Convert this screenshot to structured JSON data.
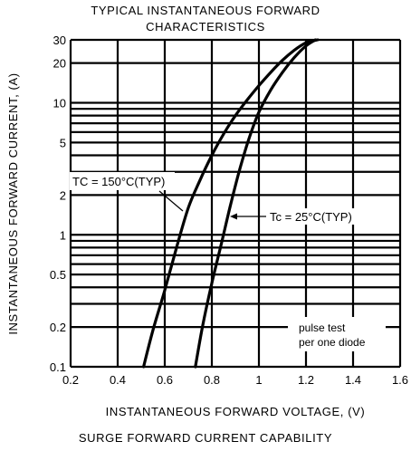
{
  "title_line1": "TYPICAL INSTANTANEOUS FORWARD",
  "title_line2": "CHARACTERISTICS",
  "footer": "SURGE FORWARD CURRENT CAPABILITY",
  "chart_data": {
    "type": "line",
    "title": "TYPICAL INSTANTANEOUS FORWARD CHARACTERISTICS",
    "xlabel": "INSTANTANEOUS FORWARD VOLTAGE, (V)",
    "ylabel": "INSTANTANEOUS FORWARD CURRENT, (A)",
    "x_scale": "linear",
    "y_scale": "log",
    "xlim": [
      0.2,
      1.6
    ],
    "ylim": [
      0.1,
      30
    ],
    "xticks": [
      0.2,
      0.4,
      0.6,
      0.8,
      1.0,
      1.2,
      1.4,
      1.6
    ],
    "xtick_labels": [
      "0.2",
      "0.4",
      "0.6",
      "0.8",
      "1",
      "1.2",
      "1.4",
      "1.6"
    ],
    "yticks": [
      0.1,
      0.2,
      0.5,
      1,
      2,
      5,
      10,
      20,
      30
    ],
    "ytick_labels": [
      "0.1",
      "0.2",
      "0.5",
      "1",
      "2",
      "5",
      "10",
      "20",
      "30"
    ],
    "y_gridlines": [
      0.1,
      0.2,
      0.3,
      0.4,
      0.5,
      0.6,
      0.7,
      0.8,
      0.9,
      1,
      2,
      3,
      4,
      5,
      6,
      7,
      8,
      9,
      10,
      20,
      30
    ],
    "grid": true,
    "series": [
      {
        "name": "TC = 150°C(TYP)",
        "x": [
          0.51,
          0.55,
          0.6,
          0.65,
          0.7,
          0.75,
          0.8,
          0.85,
          0.9,
          0.95,
          1.0,
          1.05,
          1.1,
          1.15,
          1.2,
          1.25
        ],
        "y": [
          0.1,
          0.19,
          0.38,
          0.8,
          1.6,
          2.6,
          4.0,
          5.8,
          8.0,
          10.5,
          13.5,
          17.0,
          21.0,
          25.0,
          28.5,
          30.0
        ]
      },
      {
        "name": "TC = 25°C(TYP)",
        "x": [
          0.73,
          0.76,
          0.8,
          0.84,
          0.88,
          0.92,
          0.96,
          1.0,
          1.05,
          1.1,
          1.15,
          1.2,
          1.24
        ],
        "y": [
          0.1,
          0.2,
          0.43,
          0.85,
          1.7,
          3.2,
          5.5,
          8.5,
          12.5,
          17.0,
          22.0,
          27.0,
          30.0
        ]
      }
    ],
    "annotations": [
      {
        "text": "TC = 150°C(TYP)"
      },
      {
        "text": "Tc = 25°C(TYP)"
      },
      {
        "text": "pulse test"
      },
      {
        "text": "per one diode"
      }
    ]
  }
}
